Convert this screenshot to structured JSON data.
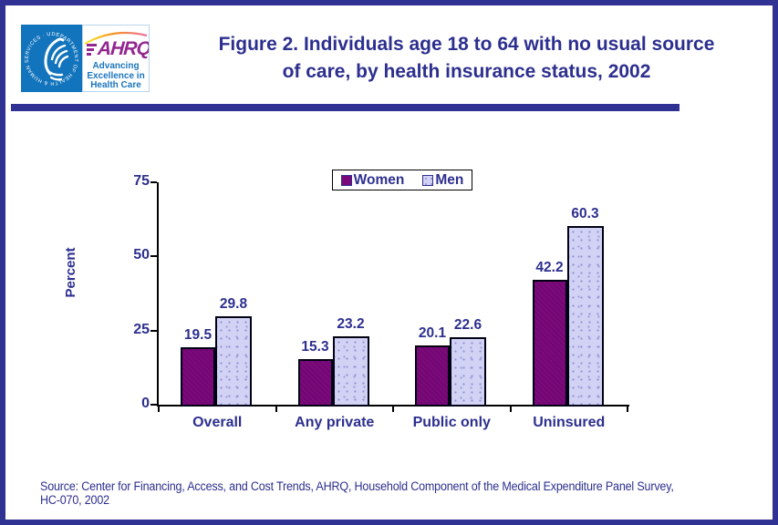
{
  "header": {
    "title_line1": "Figure 2. Individuals age 18 to 64 with no usual source",
    "title_line2": "of care, by health insurance status, 2002",
    "logo": {
      "hhs_circle_text": "DEPARTMENT OF HEALTH & HUMAN SERVICES · USA",
      "ahrq_acronym": "AHRQ",
      "ahrq_tagline_line1": "Advancing",
      "ahrq_tagline_line2": "Excellence in",
      "ahrq_tagline_line3": "Health Care"
    }
  },
  "chart_data": {
    "type": "bar",
    "title": "Figure 2. Individuals age 18 to 64 with no usual source of care, by health insurance status, 2002",
    "categories": [
      "Overall",
      "Any private",
      "Public only",
      "Uninsured"
    ],
    "series": [
      {
        "name": "Women",
        "color": "#7B097B",
        "values": [
          19.5,
          15.3,
          20.1,
          42.2
        ]
      },
      {
        "name": "Men",
        "color": "#D2D2F5",
        "values": [
          29.8,
          23.2,
          22.6,
          60.3
        ]
      }
    ],
    "xlabel": "",
    "ylabel": "Percent",
    "yticks": [
      0,
      25,
      50,
      75
    ],
    "ylim": [
      0,
      75
    ],
    "grid": false,
    "legend_position": "top-center"
  },
  "colors": {
    "accent_navy_text": "#2D2F8F",
    "frame_navy": "#2F3193",
    "women_bar": "#7B097B",
    "men_bar": "#D2D2F5",
    "hhs_logo_blue": "#1274BC",
    "ahrq_logo_purple": "#93278F",
    "ahrq_tagline_blue": "#1B75BC",
    "axis_black": "#000000"
  },
  "footer": {
    "source_line1": "Source: Center for Financing, Access, and Cost Trends, AHRQ, Household Component of the Medical Expenditure Panel Survey,",
    "source_line2": "HC-070, 2002"
  }
}
